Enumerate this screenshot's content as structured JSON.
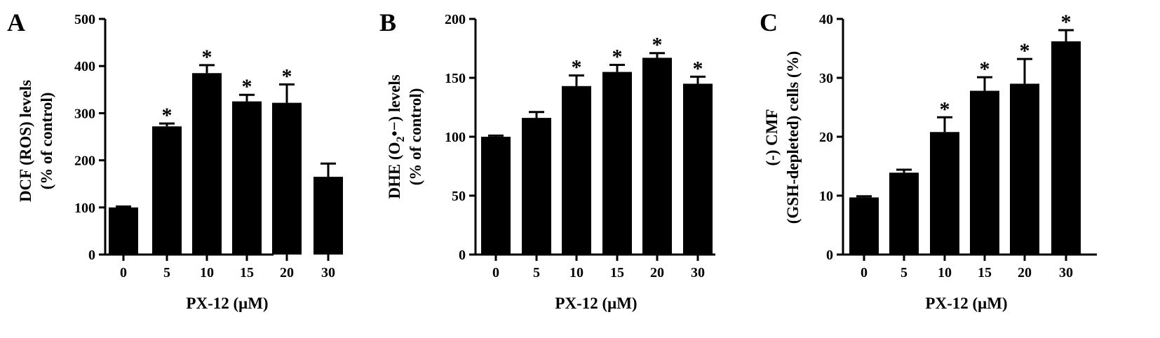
{
  "figure": {
    "panels": [
      {
        "letter": "A",
        "ylabel_line1": "DCF (ROS) levels",
        "ylabel_line2": "(% of control)",
        "xlabel": "PX-12 (μM)"
      },
      {
        "letter": "B",
        "ylabel_line1_pre": "DHE (O",
        "ylabel_line1_sub": "2",
        "ylabel_line1_post": "•−) levels",
        "ylabel_line2": "(% of control)",
        "xlabel": "PX-12 (μM)"
      },
      {
        "letter": "C",
        "ylabel_line1": "(-) CMF",
        "ylabel_line2": "(GSH-depleted) cells (%)",
        "xlabel": "PX-12 (μM)"
      }
    ]
  },
  "chart_data": [
    {
      "type": "bar",
      "panel": "A",
      "categories": [
        "0",
        "5",
        "10",
        "15",
        "20",
        "30"
      ],
      "values": [
        100,
        272,
        385,
        325,
        322,
        165
      ],
      "errors": [
        2,
        6,
        17,
        14,
        39,
        28
      ],
      "significant": [
        false,
        true,
        true,
        true,
        true,
        false
      ],
      "significance_marker": "*",
      "ylim": [
        0,
        500
      ],
      "yticks": [
        0,
        100,
        200,
        300,
        400,
        500
      ],
      "xlabel": "PX-12 (μM)",
      "ylabel": "DCF (ROS) levels (% of control)",
      "bar_color": "#000000"
    },
    {
      "type": "bar",
      "panel": "B",
      "categories": [
        "0",
        "5",
        "10",
        "15",
        "20",
        "30"
      ],
      "values": [
        100,
        116,
        143,
        155,
        167,
        145
      ],
      "errors": [
        1,
        5,
        9,
        6,
        4,
        6
      ],
      "significant": [
        false,
        false,
        true,
        true,
        true,
        true
      ],
      "significance_marker": "*",
      "ylim": [
        0,
        200
      ],
      "yticks": [
        0,
        50,
        100,
        150,
        200
      ],
      "xlabel": "PX-12 (μM)",
      "ylabel": "DHE (O2•−) levels (% of control)",
      "bar_color": "#000000"
    },
    {
      "type": "bar",
      "panel": "C",
      "categories": [
        "0",
        "5",
        "10",
        "15",
        "20",
        "30"
      ],
      "values": [
        9.7,
        13.9,
        20.8,
        27.8,
        29.0,
        36.2
      ],
      "errors": [
        0.2,
        0.5,
        2.5,
        2.3,
        4.2,
        1.9
      ],
      "significant": [
        false,
        false,
        true,
        true,
        true,
        true
      ],
      "significance_marker": "*",
      "ylim": [
        0,
        40
      ],
      "yticks": [
        0,
        10,
        20,
        30,
        40
      ],
      "xlabel": "PX-12 (μM)",
      "ylabel": "(-) CMF (GSH-depleted) cells (%)",
      "bar_color": "#000000"
    }
  ]
}
